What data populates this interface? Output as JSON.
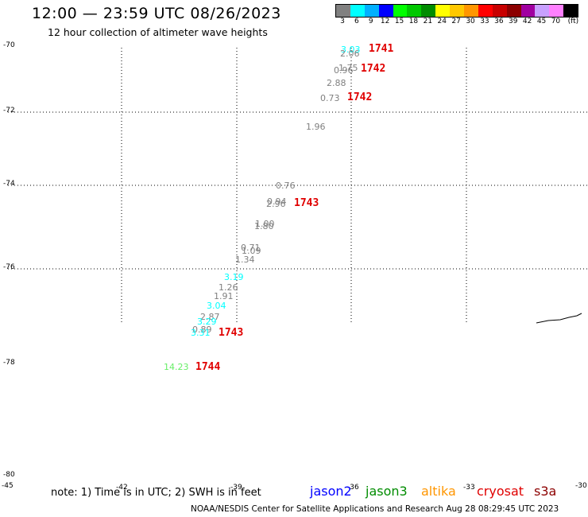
{
  "header": {
    "title": "12:00 — 23:59 UTC 08/26/2023",
    "subtitle": "12 hour collection of altimeter wave heights"
  },
  "colorbar": {
    "colors": [
      "#808080",
      "#00ffff",
      "#00b0ff",
      "#0000ff",
      "#00ff00",
      "#00c800",
      "#008c00",
      "#ffff00",
      "#ffc800",
      "#ff9600",
      "#ff0000",
      "#c80000",
      "#8c0000",
      "#a000a0",
      "#c8a0ff",
      "#ff80ff",
      "#000000"
    ],
    "labels": [
      "3",
      "6",
      "9",
      "12",
      "15",
      "18",
      "21",
      "24",
      "27",
      "30",
      "33",
      "36",
      "39",
      "42",
      "45",
      "70",
      "(ft)"
    ]
  },
  "axes": {
    "lat_labels": [
      "-70",
      "-72",
      "-74",
      "-76",
      "-78",
      "-80"
    ],
    "lon_labels": [
      "-45",
      "-42",
      "-39",
      "-36",
      "-33",
      "-30"
    ]
  },
  "wave_labels": [
    {
      "text": "3.03",
      "color": "#00ffff"
    },
    {
      "text": "2.06",
      "color": "#808080"
    },
    {
      "text": "1.75",
      "color": "#808080"
    },
    {
      "text": "0.96",
      "color": "#808080"
    },
    {
      "text": "2.88",
      "color": "#808080"
    },
    {
      "text": "0.73",
      "color": "#808080"
    },
    {
      "text": "1.96",
      "color": "#808080"
    },
    {
      "text": "0.76",
      "color": "#808080"
    },
    {
      "text": "0.94",
      "color": "#808080"
    },
    {
      "text": "2.96",
      "color": "#808080"
    },
    {
      "text": "1.00",
      "color": "#808080"
    },
    {
      "text": "1.80",
      "color": "#808080"
    },
    {
      "text": "0.71",
      "color": "#808080"
    },
    {
      "text": "1.09",
      "color": "#808080"
    },
    {
      "text": "1.34",
      "color": "#808080"
    },
    {
      "text": "3.19",
      "color": "#00ffff"
    },
    {
      "text": "1.26",
      "color": "#808080"
    },
    {
      "text": "1.91",
      "color": "#808080"
    },
    {
      "text": "3.04",
      "color": "#00ffff"
    },
    {
      "text": "2.87",
      "color": "#808080"
    },
    {
      "text": "3.29",
      "color": "#00ffff"
    },
    {
      "text": "0.89",
      "color": "#808080"
    },
    {
      "text": "3.31",
      "color": "#00ffff"
    },
    {
      "text": "14.23",
      "color": "#66ee66"
    }
  ],
  "pass_labels": [
    "1741",
    "1742",
    "1742",
    "1743",
    "1743",
    "1744"
  ],
  "note": "note:  1) Time is in UTC;  2) SWH is in feet",
  "satellites": [
    {
      "name": "jason2",
      "color": "#0000ff"
    },
    {
      "name": "jason3",
      "color": "#008c00"
    },
    {
      "name": "altika",
      "color": "#ff9600"
    },
    {
      "name": "cryosat",
      "color": "#e00000"
    },
    {
      "name": "s3a",
      "color": "#8c0000"
    }
  ],
  "footer": "NOAA/NESDIS Center for Satellite Applications and Research    Aug 28 08:29:45 UTC 2023"
}
